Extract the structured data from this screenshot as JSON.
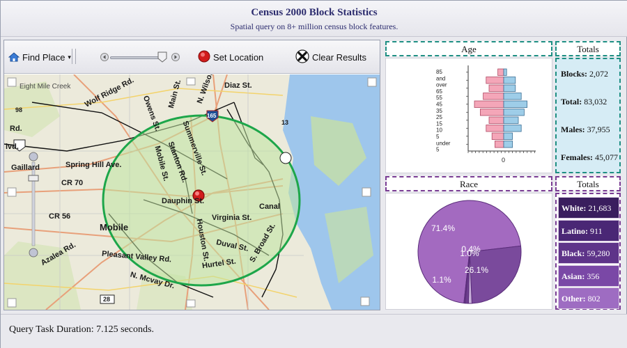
{
  "header": {
    "title": "Census 2000 Block Statistics",
    "subtitle": "Spatial query on 8+ million census block features."
  },
  "toolbar": {
    "find_place_label": "Find Place",
    "set_location_label": "Set Location",
    "clear_results_label": "Clear Results",
    "icons": [
      "home-icon",
      "dropdown-caret-icon",
      "slider-left-arrow-icon",
      "slider-right-arrow-icon",
      "record-icon",
      "close-x-icon"
    ]
  },
  "map": {
    "labels": {
      "wolf_ridge": "Wolf Ridge Rd.",
      "diaz": "Diaz St.",
      "wilson": "N. Wilson",
      "main": "Main St.",
      "owens": "Owens St.",
      "summerville": "Summerville St.",
      "stanton": "Stanton Rd.",
      "mobile_st": "Mobile St.",
      "spring_hill": "Spring Hill Ave.",
      "gaillard": "Gaillard",
      "cr70": "CR 70",
      "cr56": "CR 56",
      "dauphin": "Dauphin St.",
      "virginia": "Virginia St.",
      "canal": "Canal",
      "mobile": "Mobile",
      "houston": "Houston St.",
      "duval": "Duval St.",
      "broad": "S. Broad St.",
      "pleasant_valley": "Pleasant Valley Rd.",
      "hurtel": "Hurtel St.",
      "mcvay": "N. Mcvay Dr.",
      "azalea": "Azalea Rd.",
      "rd": "Rd.",
      "lvd": "lvd.",
      "shield_98": "98",
      "shield_13": "13",
      "shield_165": "165",
      "shield_28": "28"
    },
    "colors": {
      "buffer_circle": "#1da64a",
      "buffer_fill": "#bfe3a0",
      "water": "#9ec6ec"
    }
  },
  "age_panel": {
    "title": "Age",
    "y_labels": [
      "85",
      "and",
      "over",
      "65",
      "55",
      "45",
      "35",
      "25",
      "15",
      "10",
      "5",
      "under",
      "5"
    ],
    "x_label": "0"
  },
  "chart_data": [
    {
      "type": "bar",
      "title": "Age",
      "categories": [
        "85 and over",
        "65",
        "55",
        "45",
        "35",
        "25",
        "15",
        "10",
        "5",
        "under 5"
      ],
      "series": [
        {
          "name": "",
          "color": "#f4a6b8",
          "values": [
            -2,
            -6,
            -5,
            -7,
            -10,
            -8,
            -5,
            -6,
            -4,
            -3
          ]
        },
        {
          "name": "",
          "color": "#9ecde8",
          "values": [
            1,
            4,
            4,
            6,
            8,
            7,
            5,
            6,
            3,
            3
          ]
        }
      ],
      "xlabel": "0"
    },
    {
      "type": "pie",
      "title": "Race",
      "slices": [
        {
          "label": "71.4%",
          "value": 71.4,
          "color": "#a36ac0"
        },
        {
          "label": "26.1%",
          "value": 26.1,
          "color": "#7a4a9c"
        },
        {
          "label": "1.1%",
          "value": 1.1,
          "color": "#c9b0da"
        },
        {
          "label": "1.0%",
          "value": 1.0,
          "color": "#6e3f8f"
        },
        {
          "label": "0.4%",
          "value": 0.4,
          "color": "#6a3a88"
        }
      ]
    }
  ],
  "totals_age": {
    "title": "Totals",
    "blocks_label": "Blocks:",
    "blocks_value": "2,072",
    "total_label": "Total:",
    "total_value": "83,032",
    "males_label": "Males:",
    "males_value": "37,955",
    "females_label": "Females:",
    "females_value": "45,077"
  },
  "race_panel": {
    "title": "Race"
  },
  "totals_race": {
    "title": "Totals",
    "items": [
      {
        "label": "White:",
        "value": "21,683",
        "color": "#3a1e5e"
      },
      {
        "label": "Latino:",
        "value": "911",
        "color": "#4a2775"
      },
      {
        "label": "Black:",
        "value": "59,280",
        "color": "#5e3489"
      },
      {
        "label": "Asian:",
        "value": "356",
        "color": "#7a48a6"
      },
      {
        "label": "Other:",
        "value": "802",
        "color": "#9e6cc2"
      }
    ]
  },
  "status": {
    "text": "Query Task Duration: 7.125 seconds."
  }
}
